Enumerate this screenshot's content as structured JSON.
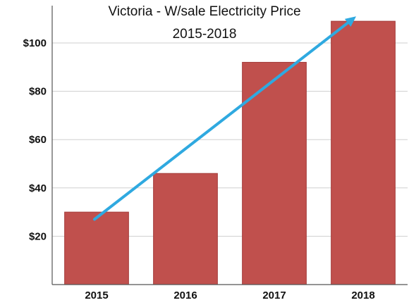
{
  "chart_data": {
    "type": "bar",
    "title": "Victoria - W/sale Electricity Price",
    "subtitle": "2015-2018",
    "categories": [
      "2015",
      "2016",
      "2017",
      "2018"
    ],
    "values": [
      30,
      46,
      92,
      109
    ],
    "xlabel": "",
    "ylabel": "",
    "ylim": [
      0,
      120
    ],
    "yticks": [
      20,
      40,
      60,
      80,
      100
    ],
    "ytick_labels": [
      "$20",
      "$40",
      "$60",
      "$80",
      "$100"
    ],
    "grid": true,
    "legend": "none",
    "trend_arrow": {
      "from_value": 27,
      "to_value": 111
    },
    "colors": {
      "bar": "#c0504d",
      "bar_edge": "#a33c3a",
      "arrow": "#2fa9e0",
      "grid": "#cfcfcf",
      "axis": "#555555"
    }
  }
}
